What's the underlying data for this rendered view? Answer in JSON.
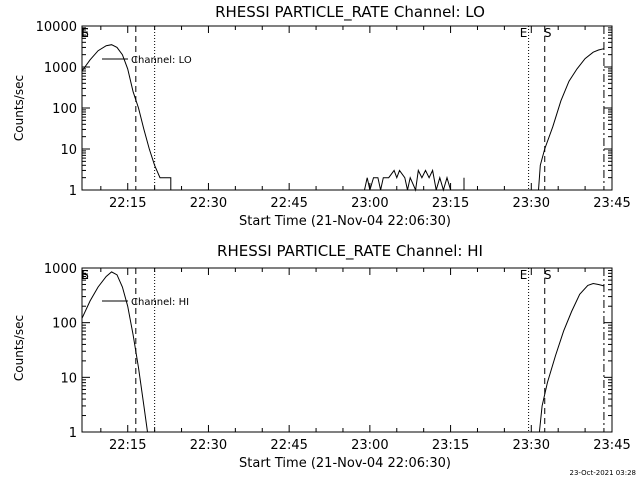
{
  "footer": {
    "timestamp": "23-Oct-2021 03:28"
  },
  "colors": {
    "background": "#ffffff",
    "ink": "#000000"
  },
  "chart_data": [
    {
      "type": "line",
      "title": "RHESSI PARTICLE_RATE Channel: LO",
      "xlabel": "Start Time (21-Nov-04 22:06:30)",
      "ylabel": "Counts/sec",
      "y_scale": "log",
      "xlim": [
        "22:06:30",
        "23:45:00"
      ],
      "ylim": [
        1,
        10000
      ],
      "x_ticks": [
        "22:15",
        "22:30",
        "22:45",
        "23:00",
        "23:15",
        "23:30",
        "23:45"
      ],
      "y_ticks": [
        "1",
        "10",
        "100",
        "1000",
        "10000"
      ],
      "legend": {
        "label": "Channel: LO",
        "placement": "top-left"
      },
      "grid": false,
      "series": [
        {
          "name": "Channel: LO",
          "segments": [
            [
              [
                "22:06:30",
                800
              ],
              [
                "22:08:00",
                1500
              ],
              [
                "22:09:30",
                2500
              ],
              [
                "22:11:00",
                3300
              ],
              [
                "22:12:00",
                3500
              ],
              [
                "22:13:00",
                3000
              ],
              [
                "22:14:00",
                2000
              ],
              [
                "22:15:00",
                900
              ],
              [
                "22:16:00",
                250
              ],
              [
                "22:17:00",
                100
              ],
              [
                "22:18:00",
                30
              ],
              [
                "22:19:00",
                10
              ],
              [
                "22:20:00",
                4
              ],
              [
                "22:21:00",
                2
              ],
              [
                "22:22:00",
                2
              ],
              [
                "22:23:00",
                2
              ],
              [
                "22:23:00",
                1
              ]
            ],
            [
              [
                "22:59:00",
                1
              ],
              [
                "22:59:30",
                2
              ],
              [
                "23:00:00",
                1
              ],
              [
                "23:00:40",
                2
              ],
              [
                "23:01:30",
                2
              ],
              [
                "23:02:00",
                1
              ],
              [
                "23:02:30",
                2
              ],
              [
                "23:03:30",
                2
              ],
              [
                "23:04:30",
                3
              ],
              [
                "23:05:00",
                2
              ],
              [
                "23:05:30",
                3
              ],
              [
                "23:06:30",
                2
              ],
              [
                "23:07:00",
                1
              ],
              [
                "23:07:30",
                2
              ],
              [
                "23:08:30",
                1
              ],
              [
                "23:09:00",
                3
              ],
              [
                "23:09:40",
                2
              ],
              [
                "23:10:20",
                3
              ],
              [
                "23:11:00",
                2
              ],
              [
                "23:11:40",
                3
              ],
              [
                "23:12:20",
                1
              ],
              [
                "23:13:00",
                2
              ],
              [
                "23:13:40",
                1
              ],
              [
                "23:14:20",
                2
              ],
              [
                "23:15:00",
                1
              ],
              [
                "23:17:30",
                1
              ],
              [
                "23:17:30",
                2
              ]
            ],
            [
              [
                "23:31:20",
                1
              ],
              [
                "23:31:40",
                4
              ],
              [
                "23:32:30",
                10
              ],
              [
                "23:34:00",
                35
              ],
              [
                "23:35:30",
                150
              ],
              [
                "23:37:00",
                450
              ],
              [
                "23:38:30",
                900
              ],
              [
                "23:40:00",
                1600
              ],
              [
                "23:41:30",
                2300
              ],
              [
                "23:42:30",
                2600
              ],
              [
                "23:43:30",
                2800
              ]
            ]
          ]
        }
      ],
      "markers": [
        {
          "label": "E",
          "time": "22:06:30",
          "style": "dotted"
        },
        {
          "label": "S",
          "time": "22:06:30",
          "style": "dashed"
        },
        {
          "label": "",
          "time": "22:16:30",
          "style": "dashed"
        },
        {
          "label": "",
          "time": "22:20:00",
          "style": "dotted"
        },
        {
          "label": "E",
          "time": "23:29:30",
          "style": "dotted"
        },
        {
          "label": "S",
          "time": "23:32:30",
          "style": "dashed"
        },
        {
          "label": "",
          "time": "23:43:30",
          "style": "dash-dot"
        }
      ]
    },
    {
      "type": "line",
      "title": "RHESSI PARTICLE_RATE Channel: HI",
      "xlabel": "Start Time (21-Nov-04 22:06:30)",
      "ylabel": "Counts/sec",
      "y_scale": "log",
      "xlim": [
        "22:06:30",
        "23:45:00"
      ],
      "ylim": [
        1,
        1000
      ],
      "x_ticks": [
        "22:15",
        "22:30",
        "22:45",
        "23:00",
        "23:15",
        "23:30",
        "23:45"
      ],
      "y_ticks": [
        "1",
        "10",
        "100",
        "1000"
      ],
      "legend": {
        "label": "Channel: HI",
        "placement": "top-left"
      },
      "grid": false,
      "series": [
        {
          "name": "Channel: HI",
          "segments": [
            [
              [
                "22:06:30",
                120
              ],
              [
                "22:08:00",
                250
              ],
              [
                "22:09:30",
                450
              ],
              [
                "22:11:00",
                700
              ],
              [
                "22:12:00",
                850
              ],
              [
                "22:13:00",
                750
              ],
              [
                "22:14:00",
                450
              ],
              [
                "22:15:00",
                200
              ],
              [
                "22:16:00",
                60
              ],
              [
                "22:17:00",
                15
              ],
              [
                "22:18:00",
                3
              ],
              [
                "22:18:40",
                1
              ]
            ],
            [
              [
                "23:31:30",
                1
              ],
              [
                "23:32:00",
                3
              ],
              [
                "23:33:00",
                8
              ],
              [
                "23:34:30",
                25
              ],
              [
                "23:36:00",
                70
              ],
              [
                "23:37:30",
                160
              ],
              [
                "23:39:00",
                330
              ],
              [
                "23:40:30",
                480
              ],
              [
                "23:41:30",
                520
              ],
              [
                "23:42:30",
                500
              ],
              [
                "23:43:30",
                470
              ]
            ]
          ]
        }
      ],
      "markers": [
        {
          "label": "E",
          "time": "22:06:30",
          "style": "dotted"
        },
        {
          "label": "S",
          "time": "22:06:30",
          "style": "dashed"
        },
        {
          "label": "",
          "time": "22:16:30",
          "style": "dashed"
        },
        {
          "label": "",
          "time": "22:20:00",
          "style": "dotted"
        },
        {
          "label": "E",
          "time": "23:29:30",
          "style": "dotted"
        },
        {
          "label": "S",
          "time": "23:32:30",
          "style": "dashed"
        },
        {
          "label": "",
          "time": "23:43:30",
          "style": "dash-dot"
        }
      ]
    }
  ]
}
